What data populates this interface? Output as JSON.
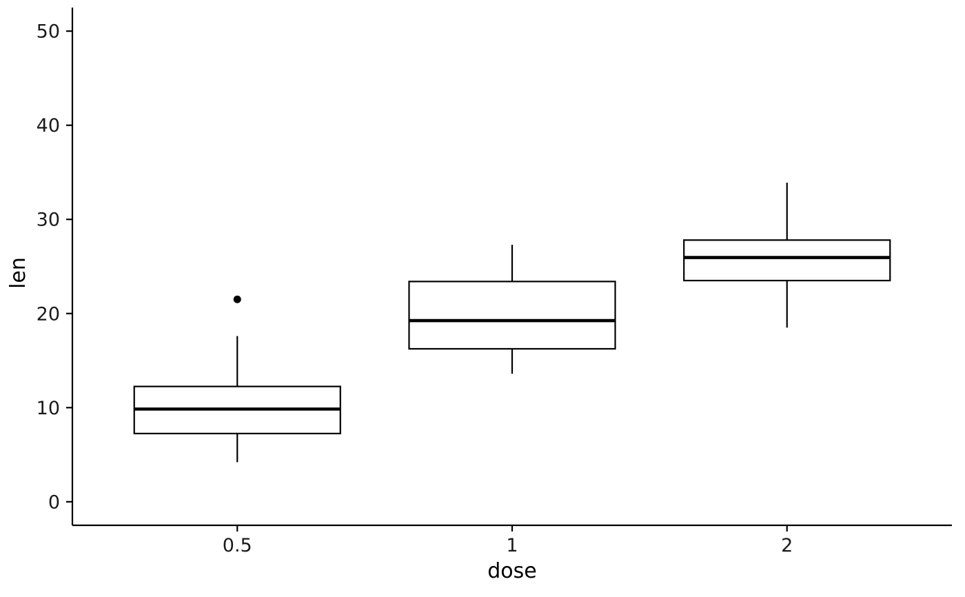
{
  "chart_data": {
    "type": "boxplot",
    "title": "",
    "xlabel": "dose",
    "ylabel": "len",
    "categories": [
      "0.5",
      "1",
      "2"
    ],
    "ylim": [
      0,
      50
    ],
    "yticks": [
      0,
      10,
      20,
      30,
      40,
      50
    ],
    "grid": "off",
    "theme": "classic",
    "box_fill": "#ffffff",
    "stroke_color": "#000000",
    "series": [
      {
        "category": "0.5",
        "whisker_low": 4.2,
        "q1": 7.25,
        "median": 9.85,
        "q3": 12.25,
        "whisker_high": 17.6,
        "outliers": [
          21.5
        ]
      },
      {
        "category": "1",
        "whisker_low": 13.6,
        "q1": 16.25,
        "median": 19.25,
        "q3": 23.4,
        "whisker_high": 27.3,
        "outliers": []
      },
      {
        "category": "2",
        "whisker_low": 18.5,
        "q1": 23.5,
        "median": 25.95,
        "q3": 27.8,
        "whisker_high": 33.9,
        "outliers": []
      }
    ]
  }
}
